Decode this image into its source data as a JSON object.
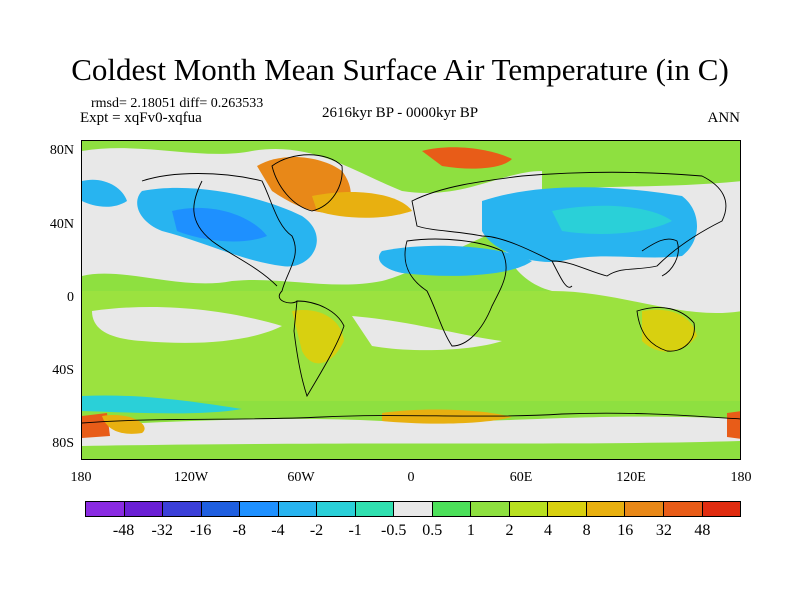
{
  "title": "Coldest Month Mean Surface Air Temperature (in C)",
  "stats_line": "rmsd= 2.18051 diff= 0.263533",
  "experiment": "Expt = xqFv0-xqfua",
  "period": "2616kyr BP - 0000kyr BP",
  "season": "ANN",
  "y_axis_labels": [
    "80N",
    "40N",
    "0",
    "40S",
    "80S"
  ],
  "x_axis_labels": [
    "180",
    "120W",
    "60W",
    "0",
    "60E",
    "120E",
    "180"
  ],
  "colorbar": {
    "colors": [
      "#8a2be2",
      "#6a1fd4",
      "#3b3fd8",
      "#1f5fe0",
      "#1e90ff",
      "#28b4f0",
      "#2ad0d8",
      "#30e0b0",
      "#e8e8e8",
      "#4ce05a",
      "#8ee040",
      "#b8e020",
      "#d8d010",
      "#e8b010",
      "#e88818",
      "#e85c18",
      "#e02c10"
    ],
    "labels": [
      "-48",
      "-32",
      "-16",
      "-8",
      "-4",
      "-2",
      "-1",
      "-0.5",
      "0.5",
      "1",
      "2",
      "4",
      "8",
      "16",
      "32",
      "48"
    ]
  }
}
